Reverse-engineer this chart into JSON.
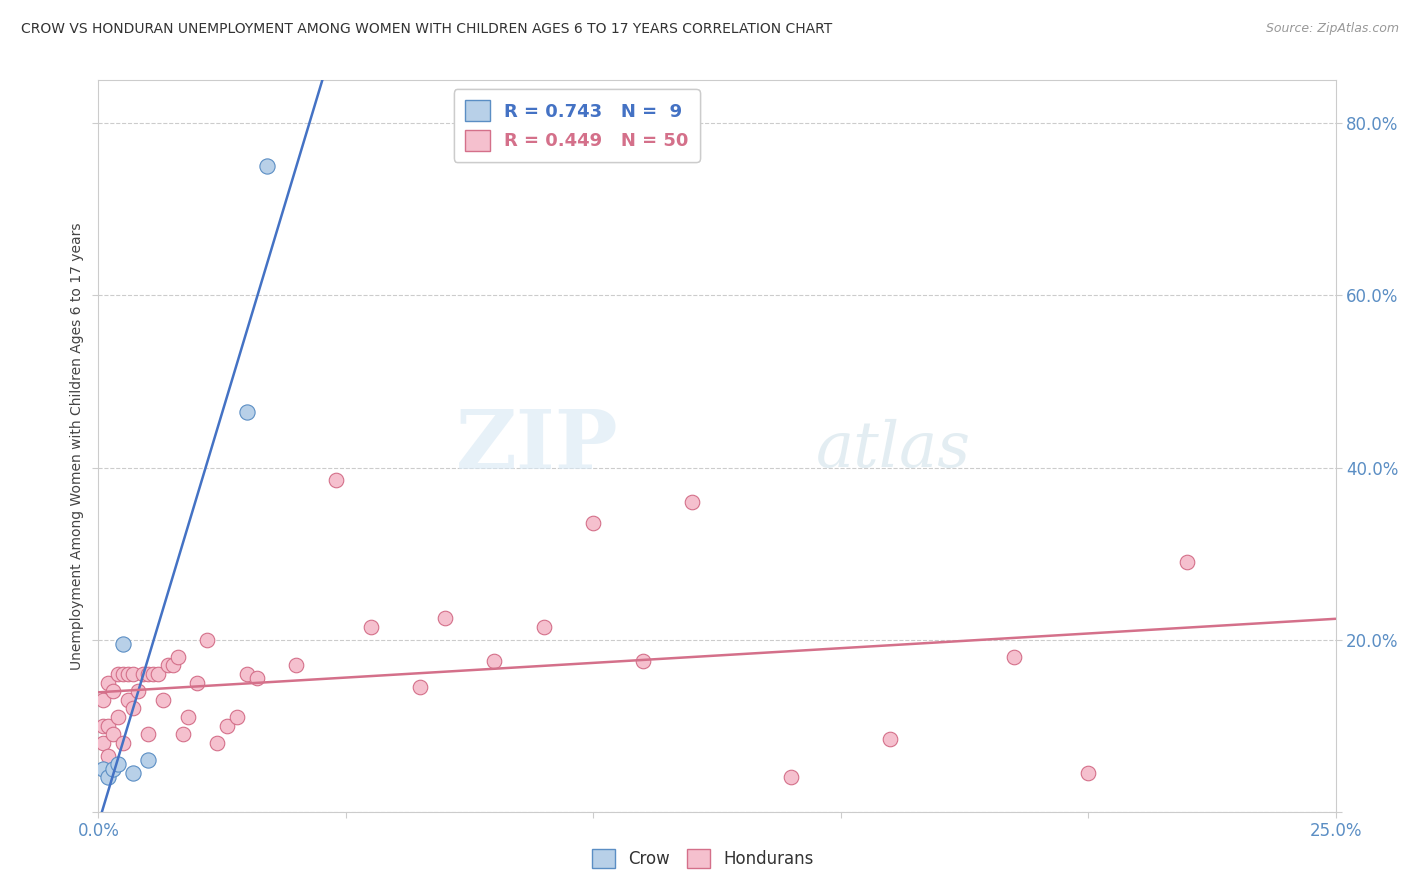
{
  "title": "CROW VS HONDURAN UNEMPLOYMENT AMONG WOMEN WITH CHILDREN AGES 6 TO 17 YEARS CORRELATION CHART",
  "source": "Source: ZipAtlas.com",
  "ylabel": "Unemployment Among Women with Children Ages 6 to 17 years",
  "xlim": [
    0.0,
    0.25
  ],
  "ylim": [
    0.0,
    0.85
  ],
  "xticks": [
    0.0,
    0.05,
    0.1,
    0.15,
    0.2,
    0.25
  ],
  "xticklabels": [
    "0.0%",
    "",
    "",
    "",
    "",
    "25.0%"
  ],
  "yticks": [
    0.0,
    0.2,
    0.4,
    0.6,
    0.8
  ],
  "yticklabels_right": [
    "",
    "20.0%",
    "40.0%",
    "60.0%",
    "80.0%"
  ],
  "crow_color": "#b8d0e8",
  "crow_edge_color": "#5b8ec4",
  "crow_line_color": "#4472c4",
  "honduran_color": "#f5c0ce",
  "honduran_edge_color": "#d4708a",
  "honduran_line_color": "#d4708a",
  "crow_R": 0.743,
  "crow_N": 9,
  "honduran_R": 0.449,
  "honduran_N": 50,
  "crow_x": [
    0.001,
    0.002,
    0.003,
    0.004,
    0.005,
    0.007,
    0.01,
    0.03,
    0.034
  ],
  "crow_y": [
    0.05,
    0.04,
    0.05,
    0.055,
    0.195,
    0.045,
    0.06,
    0.465,
    0.75
  ],
  "honduran_x": [
    0.001,
    0.001,
    0.001,
    0.002,
    0.002,
    0.002,
    0.003,
    0.003,
    0.004,
    0.004,
    0.005,
    0.005,
    0.006,
    0.006,
    0.007,
    0.007,
    0.008,
    0.009,
    0.01,
    0.01,
    0.011,
    0.012,
    0.013,
    0.014,
    0.015,
    0.016,
    0.017,
    0.018,
    0.02,
    0.022,
    0.024,
    0.026,
    0.028,
    0.03,
    0.032,
    0.04,
    0.048,
    0.055,
    0.065,
    0.07,
    0.08,
    0.09,
    0.1,
    0.11,
    0.12,
    0.14,
    0.16,
    0.185,
    0.2,
    0.22
  ],
  "honduran_y": [
    0.08,
    0.1,
    0.13,
    0.065,
    0.1,
    0.15,
    0.09,
    0.14,
    0.11,
    0.16,
    0.08,
    0.16,
    0.13,
    0.16,
    0.12,
    0.16,
    0.14,
    0.16,
    0.09,
    0.16,
    0.16,
    0.16,
    0.13,
    0.17,
    0.17,
    0.18,
    0.09,
    0.11,
    0.15,
    0.2,
    0.08,
    0.1,
    0.11,
    0.16,
    0.155,
    0.17,
    0.385,
    0.215,
    0.145,
    0.225,
    0.175,
    0.215,
    0.335,
    0.175,
    0.36,
    0.04,
    0.085,
    0.18,
    0.045,
    0.29
  ],
  "watermark_zip": "ZIP",
  "watermark_atlas": "atlas",
  "background_color": "#ffffff",
  "grid_color": "#cccccc",
  "legend_box_color": "#f0f4fc",
  "tick_color": "#5b8ec4"
}
